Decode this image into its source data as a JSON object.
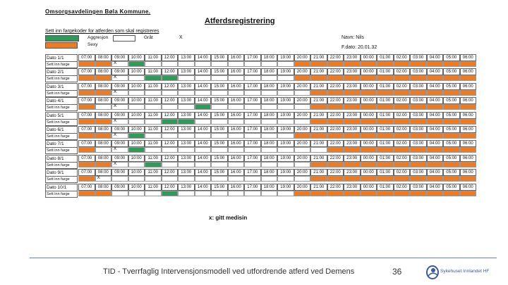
{
  "header": {
    "org": "Omsorgsavdelingen Bøla Kommune.",
    "title": "Atferdsregistrering",
    "instructions": "Sett inn fargekoder for atferden som skal registreres"
  },
  "legend": {
    "items": [
      {
        "label": "Aggresjon",
        "color": "#2f9a5a"
      },
      {
        "label": "Gråt",
        "color": "#ffffff"
      },
      {
        "label": "Sexy",
        "color": "#ef7a1f"
      }
    ],
    "x_label": "X"
  },
  "patient": {
    "name": "Navn: Nils",
    "birth": "F.dato: 20.01.32"
  },
  "hours": [
    "07:00",
    "08:00",
    "09:00",
    "10:00",
    "11:00",
    "12:00",
    "13:00",
    "14:00",
    "15:00",
    "16:00",
    "17:00",
    "18:00",
    "19:00",
    "20:00",
    "21:00",
    "22:00",
    "23:00",
    "00:00",
    "01:00",
    "02:00",
    "03:00",
    "04:00",
    "05:00",
    "06:00"
  ],
  "rows": [
    {
      "date": "Dato 1/1",
      "sub": "Sett inn farge",
      "marks": "oo.g.........ooooooooooo",
      "x": [
        2
      ]
    },
    {
      "date": "Dato 2/1",
      "sub": "Sett inn farge",
      "marks": "oo..gg.......ooooooooooo",
      "x": [
        2
      ]
    },
    {
      "date": "Dato 3/1",
      "sub": "Sett inn farge",
      "marks": "oo............oooooooooo",
      "x": [
        2
      ]
    },
    {
      "date": "Dato 4/1",
      "sub": "Sett inn farge",
      "marks": "o......g......oooooooooo",
      "x": [
        2
      ]
    },
    {
      "date": "Dato 5/1",
      "sub": "Sett inn farge",
      "marks": "oo...gg.......oooooooooo",
      "x": [
        2
      ]
    },
    {
      "date": "Dato 6/1",
      "sub": "Sett inn farge",
      "marks": "oo.g.........ooooooooooo",
      "x": [
        2
      ]
    },
    {
      "date": "Dato 7/1",
      "sub": "Sett inn farge",
      "marks": "o..g...........ooooooooo",
      "x": [
        2
      ]
    },
    {
      "date": "Dato 8/1",
      "sub": "Sett inn farge",
      "marks": "oo..g.........oooooooooo",
      "x": [
        2
      ]
    },
    {
      "date": "Dato 9/1",
      "sub": "Sett inn farge",
      "marks": "o.............oooooooooo",
      "x": [
        1
      ]
    },
    {
      "date": "Dato 10/1",
      "sub": "Sett inn farge",
      "marks": "oo...g.......ooooooooooo",
      "x": []
    }
  ],
  "footnote": "x: gitt medisin",
  "footer": {
    "text": "TID - Tverrfaglig Intervensjonsmodell ved utfordrende atferd ved Demens",
    "page": "36",
    "logo_text": "Sykehuset Innlandet HF"
  }
}
